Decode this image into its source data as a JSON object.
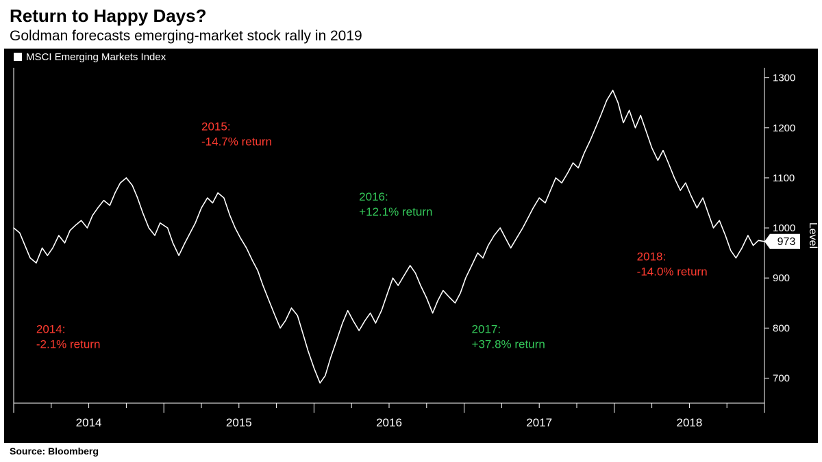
{
  "header": {
    "title": "Return to Happy Days?",
    "subtitle": "Goldman forecasts emerging-market stock rally in 2019"
  },
  "footer": {
    "source": "Source: Bloomberg"
  },
  "chart": {
    "type": "line",
    "background_color": "#000000",
    "line_color": "#ffffff",
    "line_width": 1.6,
    "legend": {
      "label": "MSCI Emerging Markets Index",
      "marker_color": "#ffffff"
    },
    "y_axis": {
      "title": "Level",
      "ticks": [
        700,
        800,
        900,
        1000,
        1100,
        1200,
        1300
      ],
      "min": 650,
      "max": 1320
    },
    "x_axis": {
      "labels": [
        "2014",
        "2015",
        "2016",
        "2017",
        "2018"
      ],
      "year_starts_t": [
        0.0,
        0.2,
        0.4,
        0.6,
        0.8,
        1.0
      ],
      "month_ticks_per_year": 3
    },
    "last_value": 973,
    "last_value_box_bg": "#ffffff",
    "last_value_box_text_color": "#000000",
    "annotations": [
      {
        "year": "2014:",
        "text": "-2.1% return",
        "sign": "neg",
        "xt": 0.03,
        "y": 790
      },
      {
        "year": "2015:",
        "text": "-14.7% return",
        "sign": "neg",
        "xt": 0.25,
        "y": 1195
      },
      {
        "year": "2016:",
        "text": "+12.1% return",
        "sign": "pos",
        "xt": 0.46,
        "y": 1055
      },
      {
        "year": "2017:",
        "text": "+37.8% return",
        "sign": "pos",
        "xt": 0.61,
        "y": 790
      },
      {
        "year": "2018:",
        "text": "-14.0% return",
        "sign": "neg",
        "xt": 0.83,
        "y": 935
      }
    ],
    "annotation_colors": {
      "neg": "#ff3b30",
      "pos": "#34c759"
    },
    "series": [
      [
        0.0,
        1000
      ],
      [
        0.008,
        990
      ],
      [
        0.015,
        965
      ],
      [
        0.022,
        940
      ],
      [
        0.03,
        930
      ],
      [
        0.038,
        960
      ],
      [
        0.045,
        945
      ],
      [
        0.052,
        960
      ],
      [
        0.06,
        985
      ],
      [
        0.068,
        970
      ],
      [
        0.075,
        995
      ],
      [
        0.082,
        1005
      ],
      [
        0.09,
        1015
      ],
      [
        0.098,
        1000
      ],
      [
        0.105,
        1025
      ],
      [
        0.112,
        1040
      ],
      [
        0.12,
        1055
      ],
      [
        0.128,
        1045
      ],
      [
        0.135,
        1070
      ],
      [
        0.142,
        1090
      ],
      [
        0.15,
        1100
      ],
      [
        0.158,
        1085
      ],
      [
        0.165,
        1060
      ],
      [
        0.172,
        1030
      ],
      [
        0.18,
        1000
      ],
      [
        0.188,
        985
      ],
      [
        0.195,
        1010
      ],
      [
        0.205,
        1000
      ],
      [
        0.212,
        970
      ],
      [
        0.22,
        945
      ],
      [
        0.228,
        970
      ],
      [
        0.235,
        990
      ],
      [
        0.242,
        1010
      ],
      [
        0.25,
        1040
      ],
      [
        0.258,
        1060
      ],
      [
        0.265,
        1050
      ],
      [
        0.272,
        1070
      ],
      [
        0.28,
        1060
      ],
      [
        0.288,
        1025
      ],
      [
        0.295,
        1000
      ],
      [
        0.302,
        980
      ],
      [
        0.31,
        960
      ],
      [
        0.318,
        935
      ],
      [
        0.325,
        915
      ],
      [
        0.332,
        885
      ],
      [
        0.34,
        855
      ],
      [
        0.348,
        825
      ],
      [
        0.355,
        800
      ],
      [
        0.362,
        815
      ],
      [
        0.37,
        840
      ],
      [
        0.378,
        825
      ],
      [
        0.385,
        790
      ],
      [
        0.392,
        755
      ],
      [
        0.4,
        720
      ],
      [
        0.408,
        690
      ],
      [
        0.415,
        705
      ],
      [
        0.422,
        740
      ],
      [
        0.43,
        775
      ],
      [
        0.438,
        810
      ],
      [
        0.445,
        835
      ],
      [
        0.452,
        815
      ],
      [
        0.46,
        795
      ],
      [
        0.468,
        815
      ],
      [
        0.475,
        830
      ],
      [
        0.482,
        810
      ],
      [
        0.49,
        835
      ],
      [
        0.498,
        870
      ],
      [
        0.505,
        900
      ],
      [
        0.512,
        885
      ],
      [
        0.52,
        905
      ],
      [
        0.528,
        925
      ],
      [
        0.535,
        910
      ],
      [
        0.542,
        885
      ],
      [
        0.55,
        860
      ],
      [
        0.558,
        830
      ],
      [
        0.565,
        855
      ],
      [
        0.572,
        875
      ],
      [
        0.58,
        862
      ],
      [
        0.588,
        850
      ],
      [
        0.595,
        870
      ],
      [
        0.602,
        900
      ],
      [
        0.61,
        925
      ],
      [
        0.618,
        950
      ],
      [
        0.625,
        940
      ],
      [
        0.632,
        965
      ],
      [
        0.64,
        985
      ],
      [
        0.648,
        1000
      ],
      [
        0.655,
        980
      ],
      [
        0.662,
        960
      ],
      [
        0.67,
        980
      ],
      [
        0.678,
        1000
      ],
      [
        0.685,
        1020
      ],
      [
        0.692,
        1040
      ],
      [
        0.7,
        1060
      ],
      [
        0.708,
        1050
      ],
      [
        0.715,
        1075
      ],
      [
        0.722,
        1100
      ],
      [
        0.73,
        1090
      ],
      [
        0.738,
        1110
      ],
      [
        0.745,
        1130
      ],
      [
        0.752,
        1120
      ],
      [
        0.76,
        1150
      ],
      [
        0.768,
        1175
      ],
      [
        0.775,
        1200
      ],
      [
        0.782,
        1225
      ],
      [
        0.79,
        1255
      ],
      [
        0.798,
        1275
      ],
      [
        0.805,
        1250
      ],
      [
        0.812,
        1210
      ],
      [
        0.82,
        1235
      ],
      [
        0.828,
        1200
      ],
      [
        0.835,
        1225
      ],
      [
        0.842,
        1195
      ],
      [
        0.85,
        1160
      ],
      [
        0.858,
        1135
      ],
      [
        0.865,
        1155
      ],
      [
        0.872,
        1130
      ],
      [
        0.88,
        1100
      ],
      [
        0.888,
        1075
      ],
      [
        0.895,
        1090
      ],
      [
        0.902,
        1065
      ],
      [
        0.91,
        1040
      ],
      [
        0.918,
        1060
      ],
      [
        0.925,
        1030
      ],
      [
        0.932,
        1000
      ],
      [
        0.94,
        1015
      ],
      [
        0.948,
        985
      ],
      [
        0.955,
        955
      ],
      [
        0.962,
        940
      ],
      [
        0.97,
        960
      ],
      [
        0.978,
        985
      ],
      [
        0.985,
        965
      ],
      [
        0.992,
        975
      ],
      [
        1.0,
        973
      ]
    ]
  }
}
